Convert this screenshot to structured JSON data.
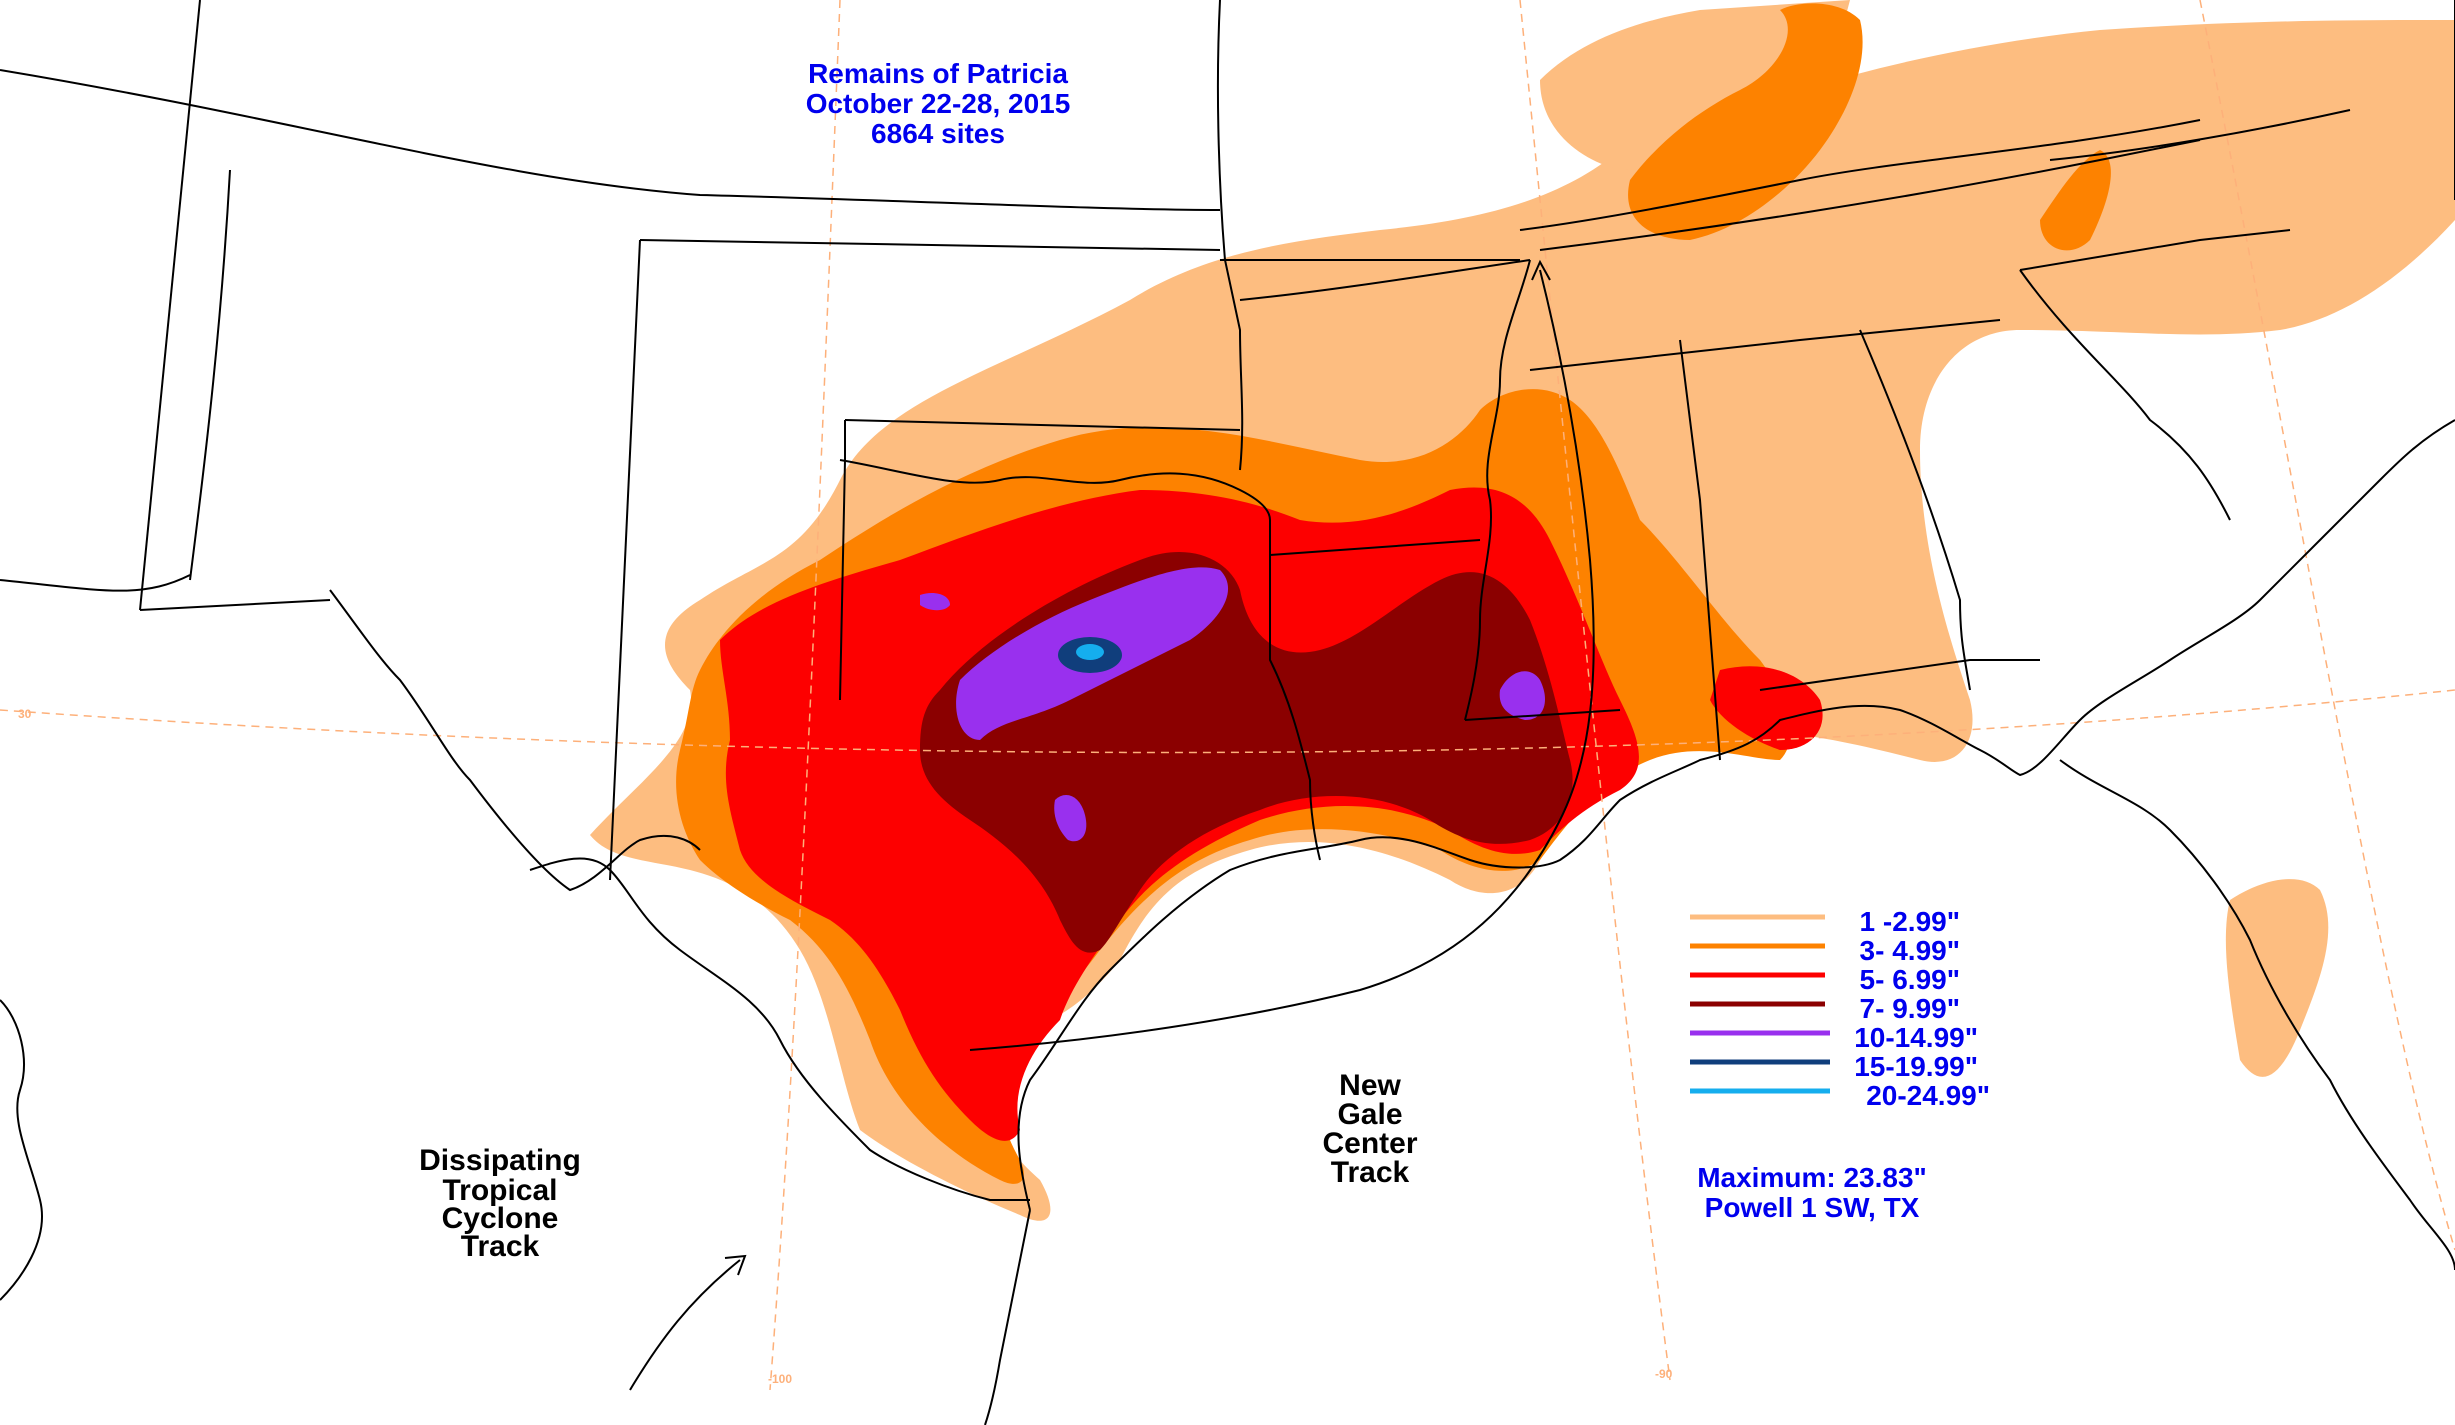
{
  "title": {
    "lines": [
      "Remains of Patricia",
      "October 22-28, 2015",
      "6864 sites"
    ],
    "color": "#0000ee"
  },
  "legend": {
    "items": [
      {
        "label": "1 -2.99\"",
        "color": "#fdbd80"
      },
      {
        "label": "3- 4.99\"",
        "color": "#fd8200"
      },
      {
        "label": "5- 6.99\"",
        "color": "#fd0000"
      },
      {
        "label": "7- 9.99\"",
        "color": "#8b0000"
      },
      {
        "label": "10-14.99\"",
        "color": "#9930ee"
      },
      {
        "label": "15-19.99\"",
        "color": "#103e7c"
      },
      {
        "label": "20-24.99\"",
        "color": "#15aeee"
      }
    ]
  },
  "summary": {
    "maximum": "Maximum: 23.83\"",
    "location": "Powell 1 SW, TX"
  },
  "tracks": {
    "tropical": [
      "Dissipating",
      "Tropical",
      "Cyclone",
      "Track"
    ],
    "gale": [
      "New",
      "Gale",
      "Center",
      "Track"
    ]
  },
  "graticule_labels": {
    "lat30": "30",
    "lon100": "-100",
    "lon90": "-90"
  },
  "colors": {
    "text_blue": "#0000ee",
    "boundary": "#000000",
    "graticule": "#fdb07a"
  }
}
